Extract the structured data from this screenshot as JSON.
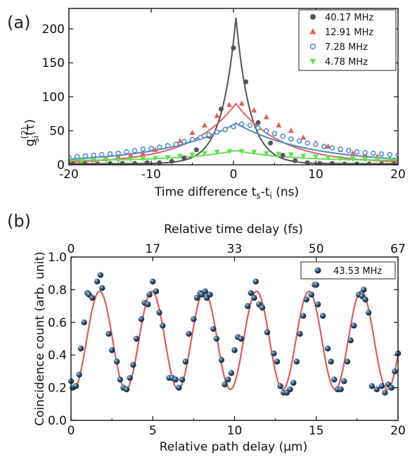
{
  "chart_data": [
    {
      "panel_label": "(a)",
      "type": "scatter",
      "xlabel_main": "Time difference t",
      "xlabel_sub1": "s",
      "xlabel_mid": "-t",
      "xlabel_sub2": "i",
      "xlabel_tail": " (ns)",
      "ylabel_main": "g",
      "ylabel_sup": "(2)",
      "ylabel_sub": "si",
      "ylabel_tail": "(τ)",
      "xlim": [
        -20,
        20
      ],
      "ylim": [
        0,
        230
      ],
      "xticks": [
        -20,
        -10,
        0,
        10,
        20
      ],
      "yticks": [
        0,
        50,
        100,
        150,
        200
      ],
      "grid": false,
      "legend_position": "top-right",
      "series": [
        {
          "name": "40.17 MHz",
          "color": "#555555",
          "marker": "circle-filled",
          "fit": {
            "amp": 215,
            "tau": 1.7,
            "base": 1.5
          },
          "x": [
            -19.5,
            -18,
            -16.5,
            -15,
            -13.5,
            -12,
            -10.5,
            -9,
            -7.5,
            -6,
            -4.5,
            -3,
            -1.5,
            0,
            1.5,
            3,
            4.5,
            6,
            7.5,
            9,
            10.5,
            12,
            13.5,
            15,
            16.5,
            18,
            19.5
          ],
          "y": [
            1,
            1,
            1,
            2,
            2,
            2,
            3,
            3,
            5,
            10,
            22,
            42,
            82,
            172,
            122,
            62,
            32,
            14,
            6,
            3,
            2,
            2,
            1,
            1,
            1,
            1,
            1
          ]
        },
        {
          "name": "12.91 MHz",
          "color": "#e06060",
          "marker": "triangle-up",
          "fit": {
            "amp": 88,
            "tau": 5.5,
            "base": 2
          },
          "x": [
            -20,
            -18.5,
            -17,
            -15.5,
            -14,
            -12.5,
            -11,
            -9.5,
            -8,
            -6.5,
            -5,
            -3.5,
            -2,
            -0.5,
            1,
            2.5,
            4,
            5.5,
            7,
            8.5,
            10,
            11.5,
            13,
            14.5,
            16,
            17.5,
            19,
            20
          ],
          "y": [
            5,
            6,
            7,
            9,
            12,
            14,
            17,
            22,
            28,
            35,
            47,
            58,
            72,
            88,
            90,
            80,
            70,
            58,
            50,
            40,
            32,
            27,
            22,
            17,
            15,
            12,
            9,
            8
          ]
        },
        {
          "name": "7.28 MHz",
          "color": "#4a8ac8",
          "marker": "circle-open",
          "fit": {
            "amp": 58,
            "tau": 8.5,
            "base": 3
          },
          "x": [
            -20,
            -19,
            -18,
            -17,
            -16,
            -15,
            -14,
            -13,
            -12,
            -11,
            -10,
            -9,
            -8,
            -7,
            -6,
            -5,
            -4,
            -3,
            -2,
            -1,
            0,
            1,
            2,
            3,
            4,
            5,
            6,
            7,
            8,
            9,
            10,
            11,
            12,
            13,
            14,
            15,
            16,
            17,
            18,
            19,
            20
          ],
          "y": [
            11,
            12,
            13,
            14,
            15,
            16,
            17,
            19,
            21,
            23,
            24,
            26,
            28,
            30,
            34,
            37,
            40,
            44,
            48,
            52,
            56,
            60,
            58,
            54,
            50,
            46,
            42,
            38,
            35,
            32,
            30,
            27,
            25,
            23,
            21,
            19,
            18,
            17,
            16,
            15,
            14
          ]
        },
        {
          "name": "4.78 MHz",
          "color": "#66dd55",
          "marker": "triangle-down",
          "fit": {
            "amp": 15,
            "tau": 6,
            "base": 6
          },
          "x": [
            -20,
            -18.5,
            -17,
            -15.5,
            -14,
            -12.5,
            -11,
            -9.5,
            -8,
            -6.5,
            -5,
            -3.5,
            -2,
            -0.5,
            1,
            2.5,
            4,
            5.5,
            7,
            8.5,
            10,
            11.5,
            13,
            14.5,
            16,
            17.5,
            19,
            20
          ],
          "y": [
            6,
            6,
            7,
            7,
            7,
            8,
            9,
            10,
            11,
            13,
            15,
            17,
            19,
            20,
            20,
            19,
            17,
            16,
            15,
            13,
            12,
            11,
            10,
            9,
            8,
            8,
            7,
            7
          ]
        }
      ]
    },
    {
      "panel_label": "(b)",
      "type": "scatter",
      "xlabel": "Relative path delay (μm)",
      "ylabel": "Coincidence count (arb. unit)",
      "top_xlabel": "Relative time delay (fs)",
      "top_xticks": [
        "0",
        "17",
        "33",
        "50",
        "67"
      ],
      "xlim": [
        0,
        20
      ],
      "ylim": [
        0.0,
        1.0
      ],
      "xticks": [
        0,
        5,
        10,
        15,
        20
      ],
      "yticks": [
        "0.0",
        "0.2",
        "0.4",
        "0.6",
        "0.8",
        "1.0"
      ],
      "grid": false,
      "legend_position": "top-right",
      "series": [
        {
          "name": "43.53 MHz",
          "color": "#1e3a5a",
          "marker": "sphere",
          "line_color": "#e05a5a",
          "fit": {
            "mean": 0.49,
            "amp": 0.3,
            "period": 3.2,
            "phase": 1.75
          },
          "x": [
            0.0,
            0.1,
            0.3,
            0.5,
            0.6,
            0.8,
            1.0,
            1.1,
            1.3,
            1.6,
            1.8,
            1.9,
            2.3,
            2.5,
            2.8,
            3.0,
            3.2,
            3.4,
            3.6,
            3.8,
            4.0,
            4.3,
            4.5,
            4.7,
            4.8,
            5.0,
            5.2,
            5.4,
            5.6,
            6.0,
            6.2,
            6.4,
            6.6,
            6.8,
            7.0,
            7.2,
            7.5,
            7.7,
            7.9,
            8.0,
            8.2,
            8.3,
            8.5,
            8.7,
            8.9,
            9.2,
            9.4,
            9.6,
            9.8,
            10.0,
            10.2,
            10.4,
            10.8,
            11.0,
            11.2,
            11.3,
            11.5,
            11.7,
            12.0,
            12.4,
            12.6,
            12.8,
            13.0,
            13.2,
            13.4,
            13.6,
            13.8,
            14.0,
            14.2,
            14.4,
            14.7,
            14.9,
            15.0,
            15.1,
            15.4,
            15.7,
            15.9,
            16.1,
            16.3,
            16.5,
            16.7,
            16.9,
            17.1,
            17.3,
            17.6,
            17.8,
            17.9,
            18.0,
            18.2,
            18.4,
            18.7,
            19.0,
            19.2,
            19.4,
            19.6,
            19.8,
            20.0
          ],
          "y": [
            0.24,
            0.2,
            0.21,
            0.28,
            0.44,
            0.6,
            0.78,
            0.77,
            0.75,
            0.85,
            0.89,
            0.81,
            0.53,
            0.43,
            0.36,
            0.25,
            0.2,
            0.19,
            0.26,
            0.34,
            0.5,
            0.62,
            0.72,
            0.71,
            0.77,
            0.85,
            0.79,
            0.66,
            0.58,
            0.26,
            0.26,
            0.25,
            0.2,
            0.25,
            0.36,
            0.53,
            0.62,
            0.75,
            0.78,
            0.77,
            0.79,
            0.75,
            0.77,
            0.56,
            0.5,
            0.37,
            0.22,
            0.25,
            0.29,
            0.43,
            0.51,
            0.5,
            0.7,
            0.78,
            0.75,
            0.85,
            0.71,
            0.69,
            0.54,
            0.41,
            0.36,
            0.21,
            0.17,
            0.17,
            0.19,
            0.23,
            0.36,
            0.53,
            0.64,
            0.74,
            0.77,
            0.83,
            0.83,
            0.71,
            0.64,
            0.44,
            0.36,
            0.25,
            0.19,
            0.19,
            0.24,
            0.36,
            0.49,
            0.58,
            0.77,
            0.76,
            0.8,
            0.74,
            0.66,
            0.21,
            0.19,
            0.21,
            0.17,
            0.22,
            0.2,
            0.3,
            0.41
          ]
        }
      ]
    }
  ]
}
